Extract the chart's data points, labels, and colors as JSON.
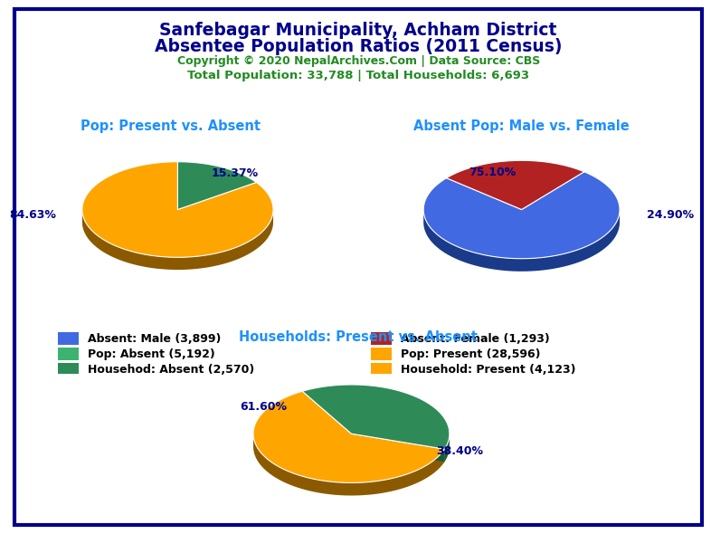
{
  "title_line1": "Sanfebagar Municipality, Achham District",
  "title_line2": "Absentee Population Ratios (2011 Census)",
  "title_color": "#00008B",
  "copyright_text": "Copyright © 2020 NepalArchives.Com | Data Source: CBS",
  "copyright_color": "#228B22",
  "stats_text": "Total Population: 33,788 | Total Households: 6,693",
  "stats_color": "#228B22",
  "pie1_title": "Pop: Present vs. Absent",
  "pie1_title_color": "#1E90FF",
  "pie1_values": [
    84.63,
    15.37
  ],
  "pie1_colors": [
    "#FFA500",
    "#2E8B57"
  ],
  "pie1_side_colors": [
    "#8B5A00",
    "#1A5C35"
  ],
  "pie1_startangle": 90,
  "pie1_label0": "84.63%",
  "pie1_label1": "15.37%",
  "pie2_title": "Absent Pop: Male vs. Female",
  "pie2_title_color": "#1E90FF",
  "pie2_values": [
    75.1,
    24.9
  ],
  "pie2_colors": [
    "#4169E1",
    "#B22222"
  ],
  "pie2_side_colors": [
    "#1A3A8A",
    "#7A1010"
  ],
  "pie2_startangle": 90,
  "pie2_label0": "75.10%",
  "pie2_label1": "24.90%",
  "pie3_title": "Households: Present vs. Absent",
  "pie3_title_color": "#1E90FF",
  "pie3_values": [
    61.6,
    38.4
  ],
  "pie3_colors": [
    "#FFA500",
    "#2E8B57"
  ],
  "pie3_side_colors": [
    "#8B5A00",
    "#1A5C35"
  ],
  "pie3_startangle": 90,
  "pie3_label0": "61.60%",
  "pie3_label1": "38.40%",
  "legend_items": [
    {
      "label": "Absent: Male (3,899)",
      "color": "#4169E1"
    },
    {
      "label": "Absent: Female (1,293)",
      "color": "#B22222"
    },
    {
      "label": "Pop: Absent (5,192)",
      "color": "#3CB371"
    },
    {
      "label": "Pop: Present (28,596)",
      "color": "#FFA500"
    },
    {
      "label": "Househod: Absent (2,570)",
      "color": "#2E8B57"
    },
    {
      "label": "Household: Present (4,123)",
      "color": "#FFA500"
    }
  ],
  "bg_color": "#FFFFFF",
  "border_color": "#00008B"
}
